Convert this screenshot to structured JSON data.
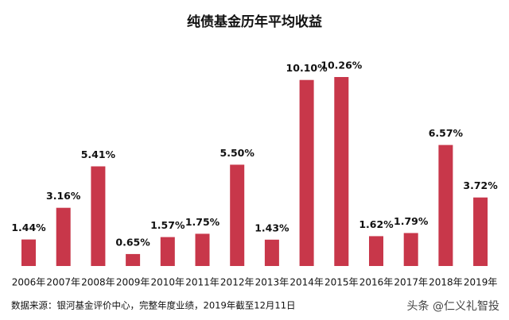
{
  "chart_data": {
    "type": "bar",
    "title": "纯债基金历年平均收益",
    "categories": [
      "2006年",
      "2007年",
      "2008年",
      "2009年",
      "2010年",
      "2011年",
      "2012年",
      "2013年",
      "2014年",
      "2015年",
      "2016年",
      "2017年",
      "2018年",
      "2019年"
    ],
    "values": [
      1.44,
      3.16,
      5.41,
      0.65,
      1.57,
      1.75,
      5.5,
      1.43,
      10.1,
      10.26,
      1.62,
      1.79,
      6.57,
      3.72
    ],
    "value_labels": [
      "1.44%",
      "3.16%",
      "5.41%",
      "0.65%",
      "1.57%",
      "1.75%",
      "5.50%",
      "1.43%",
      "10.10%",
      "10.26%",
      "1.62%",
      "1.79%",
      "6.57%",
      "3.72%"
    ],
    "color": "#c8374a",
    "source": "数据来源：银河基金评价中心，完整年度业绩，2019年截至12月11日",
    "watermark": "头条 @仁义礼智投"
  }
}
